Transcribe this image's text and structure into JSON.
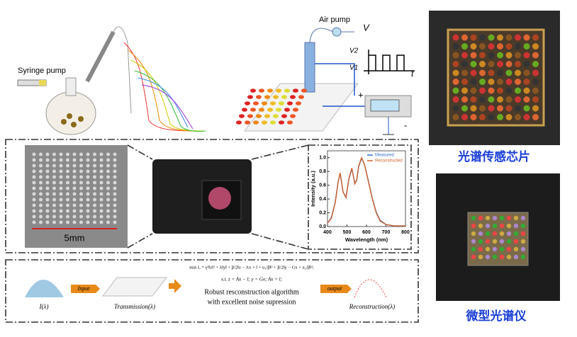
{
  "top": {
    "syringe_label": "Syringe pump",
    "air_pump_label": "Air pump",
    "v_axis": "V",
    "v2": "V2",
    "v1": "V1",
    "t_axis": "t",
    "plus": "+",
    "minus": "-"
  },
  "chip_photo": {
    "scale": "5mm"
  },
  "spectrum_plot": {
    "type": "line",
    "x_label": "Wavelength (nm)",
    "y_label": "Intensity (a.u.)",
    "xlim": [
      400,
      800
    ],
    "ylim": [
      0,
      1.1
    ],
    "xticks": [
      400,
      500,
      600,
      700,
      800
    ],
    "yticks": [
      {
        "value": 0,
        "label": "0.0"
      },
      0.2,
      0.4,
      0.6,
      0.8,
      {
        "value": 1,
        "label": "1.0"
      }
    ],
    "x": [
      400,
      420,
      440,
      455,
      465,
      480,
      495,
      510,
      525,
      540,
      550,
      560,
      575,
      590,
      610,
      630,
      650,
      670,
      700,
      740,
      800
    ],
    "series": [
      {
        "name": "Measured",
        "color": "#2f6fd0",
        "values": [
          0.05,
          0.13,
          0.36,
          0.66,
          0.77,
          0.5,
          0.43,
          0.69,
          0.84,
          0.63,
          0.67,
          0.87,
          0.99,
          0.9,
          0.66,
          0.41,
          0.21,
          0.09,
          0.03,
          0.01,
          0.01
        ]
      },
      {
        "name": "Reconstructed",
        "color": "#d2602a",
        "values": [
          0.05,
          0.12,
          0.35,
          0.65,
          0.78,
          0.5,
          0.42,
          0.7,
          0.85,
          0.62,
          0.68,
          0.88,
          1.0,
          0.9,
          0.65,
          0.4,
          0.2,
          0.08,
          0.03,
          0.01,
          0.01
        ]
      }
    ]
  },
  "labels": {
    "chip": "光谱传感芯片",
    "device": "微型光谱仪"
  },
  "pipeline": {
    "input_symbol": "I(λ)",
    "input_arrow": "Input",
    "transmission": "Transmission(λ)",
    "equation_1": "min L = γ²‖z‖² + λ‖y‖ + β/2‖z − Ax + l + u₁/β‖² + β/2‖y − Gx + u₂/β‖²;",
    "equation_2": "s.t. z = Ax − l; y = Gx; Ax = l;",
    "caption_1": "Robust resconstruction algorithm",
    "caption_2": "with excellent noise supression",
    "output_arrow": "output",
    "reconstruction": "Reconstruction(λ)"
  }
}
